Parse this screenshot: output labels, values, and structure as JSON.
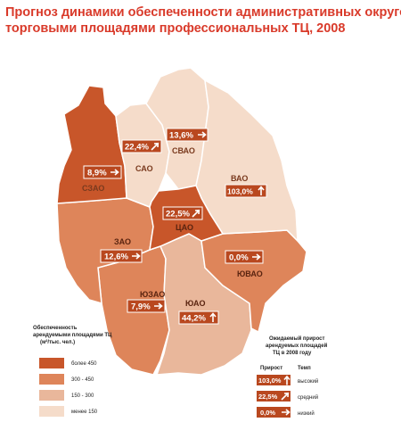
{
  "title": {
    "line1": "Прогноз динамики обеспеченности административных округов",
    "line2": "торговыми площадями профессиональных ТЦ, 2008"
  },
  "colors": {
    "title": "#d93a2a",
    "level_more_450": "#c8562a",
    "level_300_450": "#de855a",
    "level_150_300": "#e9b79b",
    "level_less_150": "#f5dcca",
    "value_box": "#b9481f"
  },
  "districts": [
    {
      "name": "САО",
      "value": "22,4%",
      "trend": "medium",
      "level": "less_150"
    },
    {
      "name": "СВАО",
      "value": "13,6%",
      "trend": "low",
      "level": "less_150"
    },
    {
      "name": "ВАО",
      "value": "103,0%",
      "trend": "high",
      "level": "less_150"
    },
    {
      "name": "СЗАО",
      "value": "8,9%",
      "trend": "low",
      "level": "more_450"
    },
    {
      "name": "ЦАО",
      "value": "22,5%",
      "trend": "medium",
      "level": "more_450"
    },
    {
      "name": "ЗАО",
      "value": "12,6%",
      "trend": "low",
      "level": "300_450"
    },
    {
      "name": "ЮВАО",
      "value": "0,0%",
      "trend": "low",
      "level": "300_450"
    },
    {
      "name": "ЮЗАО",
      "value": "7,9%",
      "trend": "low",
      "level": "300_450"
    },
    {
      "name": "ЮАО",
      "value": "44,2%",
      "trend": "high",
      "level": "150_300"
    }
  ],
  "legend_left": {
    "title_line1": "Обеспеченность",
    "title_line2": "арендуемыми площадями ТЦ",
    "title_line3": "(м²/тыс. чел.)",
    "items": [
      "более 450",
      "300 - 450",
      "150 - 300",
      "менее 150"
    ]
  },
  "legend_right": {
    "title_line1": "Ожидаемый прирост",
    "title_line2": "арендуемых площадей",
    "title_line3": "ТЦ в 2008 году",
    "col1": "Прирост",
    "col2": "Темп",
    "items": [
      {
        "value": "103,0%",
        "label": "высокий",
        "trend": "high"
      },
      {
        "value": "22,5%",
        "label": "средний",
        "trend": "medium"
      },
      {
        "value": "0,0%",
        "label": "низкий",
        "trend": "low"
      }
    ]
  }
}
